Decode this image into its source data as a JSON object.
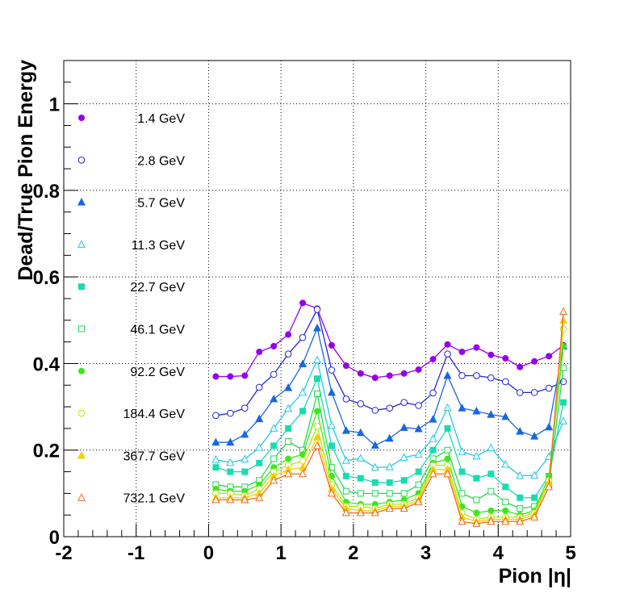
{
  "chart_data": {
    "type": "scatter",
    "title": "",
    "xlabel": "Pion |η|",
    "ylabel": "Dead/True Pion Energy",
    "xlim": [
      -2,
      5
    ],
    "ylim": [
      0,
      1.1
    ],
    "xticks": [
      -2,
      -1,
      0,
      1,
      2,
      3,
      4,
      5
    ],
    "yticks": [
      0,
      0.2,
      0.4,
      0.6,
      0.8,
      1
    ],
    "x_tick_labels": [
      "-2",
      "-1",
      "0",
      "1",
      "2",
      "3",
      "4",
      "5"
    ],
    "y_tick_labels": [
      "0",
      "0.2",
      "0.4",
      "0.6",
      "0.8",
      "1"
    ],
    "grid": true,
    "legend_position": "left",
    "x": [
      0.1,
      0.3,
      0.5,
      0.7,
      0.9,
      1.1,
      1.3,
      1.5,
      1.7,
      1.9,
      2.1,
      2.3,
      2.5,
      2.7,
      2.9,
      3.1,
      3.3,
      3.5,
      3.7,
      3.9,
      4.1,
      4.3,
      4.5,
      4.7,
      4.9
    ],
    "series": [
      {
        "name": "1.4 GeV",
        "color": "#9400ee",
        "marker": "circle-filled",
        "values": [
          0.37,
          0.37,
          0.372,
          0.427,
          0.44,
          0.467,
          0.54,
          0.527,
          0.442,
          0.395,
          0.377,
          0.367,
          0.372,
          0.377,
          0.386,
          0.41,
          0.444,
          0.427,
          0.437,
          0.42,
          0.412,
          0.392,
          0.405,
          0.417,
          0.442
        ]
      },
      {
        "name": "2.8 GeV",
        "color": "#2424d8",
        "marker": "circle-open",
        "values": [
          0.28,
          0.285,
          0.297,
          0.345,
          0.375,
          0.422,
          0.46,
          0.525,
          0.385,
          0.318,
          0.307,
          0.292,
          0.297,
          0.31,
          0.303,
          0.332,
          0.422,
          0.372,
          0.372,
          0.367,
          0.358,
          0.333,
          0.333,
          0.343,
          0.358
        ]
      },
      {
        "name": "5.7 GeV",
        "color": "#1767e0",
        "marker": "triangle-filled",
        "values": [
          0.218,
          0.218,
          0.236,
          0.272,
          0.318,
          0.344,
          0.399,
          0.482,
          0.333,
          0.245,
          0.24,
          0.211,
          0.227,
          0.252,
          0.249,
          0.271,
          0.372,
          0.297,
          0.29,
          0.282,
          0.277,
          0.243,
          0.232,
          0.253,
          0.44
        ]
      },
      {
        "name": "11.3 GeV",
        "color": "#22c8e8",
        "marker": "triangle-open",
        "values": [
          0.178,
          0.171,
          0.179,
          0.206,
          0.25,
          0.296,
          0.333,
          0.408,
          0.257,
          0.176,
          0.181,
          0.16,
          0.161,
          0.183,
          0.19,
          0.226,
          0.298,
          0.196,
          0.186,
          0.205,
          0.167,
          0.141,
          0.142,
          0.185,
          0.267
        ]
      },
      {
        "name": "22.7 GeV",
        "color": "#18dcb0",
        "marker": "square-filled",
        "values": [
          0.16,
          0.15,
          0.15,
          0.17,
          0.21,
          0.25,
          0.29,
          0.365,
          0.21,
          0.14,
          0.135,
          0.125,
          0.125,
          0.13,
          0.15,
          0.2,
          0.25,
          0.15,
          0.135,
          0.145,
          0.115,
          0.09,
          0.09,
          0.14,
          0.31
        ]
      },
      {
        "name": "46.1 GeV",
        "color": "#22d850",
        "marker": "square-open",
        "values": [
          0.12,
          0.115,
          0.115,
          0.13,
          0.18,
          0.22,
          0.2,
          0.33,
          0.16,
          0.105,
          0.1,
          0.1,
          0.1,
          0.1,
          0.12,
          0.18,
          0.2,
          0.1,
          0.085,
          0.105,
          0.08,
          0.065,
          0.07,
          0.12,
          0.39
        ]
      },
      {
        "name": "92.2 GeV",
        "color": "#3ae81e",
        "marker": "circle-filled",
        "values": [
          0.11,
          0.105,
          0.105,
          0.12,
          0.16,
          0.18,
          0.19,
          0.29,
          0.14,
          0.08,
          0.075,
          0.075,
          0.08,
          0.085,
          0.1,
          0.17,
          0.18,
          0.07,
          0.055,
          0.06,
          0.06,
          0.05,
          0.06,
          0.14,
          0.44
        ]
      },
      {
        "name": "184.4 GeV",
        "color": "#a6ea18",
        "marker": "circle-open",
        "values": [
          0.1,
          0.1,
          0.095,
          0.11,
          0.15,
          0.165,
          0.175,
          0.255,
          0.12,
          0.07,
          0.07,
          0.065,
          0.075,
          0.075,
          0.09,
          0.165,
          0.165,
          0.055,
          0.04,
          0.045,
          0.045,
          0.045,
          0.055,
          0.13,
          0.48
        ]
      },
      {
        "name": "367.7 GeV",
        "color": "#f5d000",
        "marker": "triangle-filled",
        "values": [
          0.09,
          0.09,
          0.09,
          0.1,
          0.14,
          0.155,
          0.16,
          0.23,
          0.11,
          0.065,
          0.06,
          0.06,
          0.07,
          0.07,
          0.085,
          0.155,
          0.155,
          0.045,
          0.035,
          0.04,
          0.04,
          0.04,
          0.05,
          0.125,
          0.5
        ]
      },
      {
        "name": "732.1 GeV",
        "color": "#f26a1e",
        "marker": "triangle-open",
        "values": [
          0.085,
          0.085,
          0.085,
          0.09,
          0.13,
          0.145,
          0.145,
          0.21,
          0.1,
          0.055,
          0.055,
          0.055,
          0.065,
          0.065,
          0.08,
          0.145,
          0.145,
          0.035,
          0.03,
          0.035,
          0.035,
          0.035,
          0.045,
          0.115,
          0.52
        ]
      }
    ]
  }
}
